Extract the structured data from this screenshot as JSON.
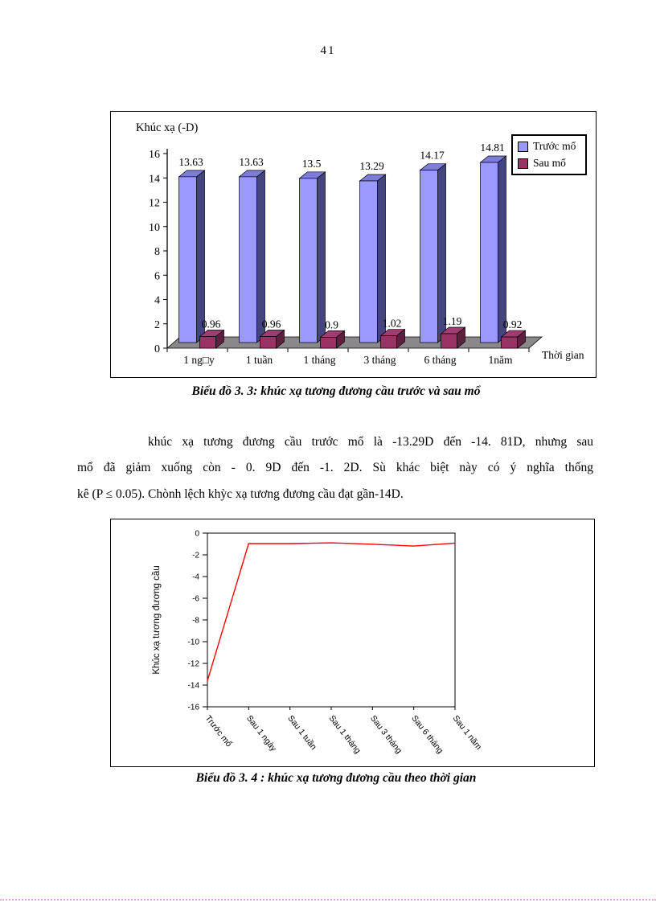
{
  "page": {
    "number": "41"
  },
  "figure1": {
    "caption": "Biểu đồ 3. 3: khúc xạ tương đương cầu trước và sau mổ"
  },
  "figure2": {
    "caption": "Biểu đồ 3. 4  : khúc xạ tương đương cầu theo thời gian"
  },
  "paragraph": {
    "lines": [
      "khúc xạ tương đương cầu trước mổ là -13.29D  đến -14. 81D, nhưng sau",
      "mổ đã giảm xuống còn - 0. 9D đến -1. 2D. Sù khác biệt này có ý nghĩa thống",
      "kê (P ≤ 0.05). Chònh lệch khỳc xạ tương đương cầu  đạt gần-14D."
    ]
  },
  "chart_data": [
    {
      "type": "bar",
      "title": "Khúc xạ (-D)",
      "xlabel": "Thời gian",
      "categories": [
        "1 ng□y",
        "1 tuần",
        "1 tháng",
        "3 tháng",
        "6 tháng",
        "1năm"
      ],
      "series": [
        {
          "name": "Trước mổ",
          "color": "#9999FF",
          "values": [
            13.63,
            13.63,
            13.5,
            13.29,
            14.17,
            14.81
          ]
        },
        {
          "name": "Sau mổ",
          "color": "#993366",
          "values": [
            0.96,
            0.96,
            0.9,
            1.02,
            1.19,
            0.92
          ]
        }
      ],
      "ylim": [
        0,
        16
      ],
      "ytick_step": 2,
      "grid": false,
      "legend_position": "top-right",
      "colors": {
        "floor": "#8a888a",
        "bar1": {
          "front": "#9999FF",
          "side": "#44447E",
          "top": "#7D7DD8"
        },
        "bar2": {
          "front": "#993366",
          "side": "#5E2040",
          "top": "#A23B72"
        }
      }
    },
    {
      "type": "line",
      "ylabel": "Khúc xạ tương đương cầu",
      "categories": [
        "Trước mổ",
        "Sau 1 ngày",
        "Sau 1 tuần",
        "Sau 1 tháng",
        "Sau 3 tháng",
        "Sau 6 tháng",
        "Sau 1 năm"
      ],
      "series": [
        {
          "name": "Khúc xạ tương đương cầu",
          "color": "#FF0000",
          "values": [
            -13.6,
            -0.96,
            -0.96,
            -0.9,
            -1.02,
            -1.19,
            -0.92
          ]
        }
      ],
      "ylim": [
        -16,
        0
      ],
      "ytick_step": 2,
      "grid": false,
      "legend_position": "none"
    }
  ]
}
